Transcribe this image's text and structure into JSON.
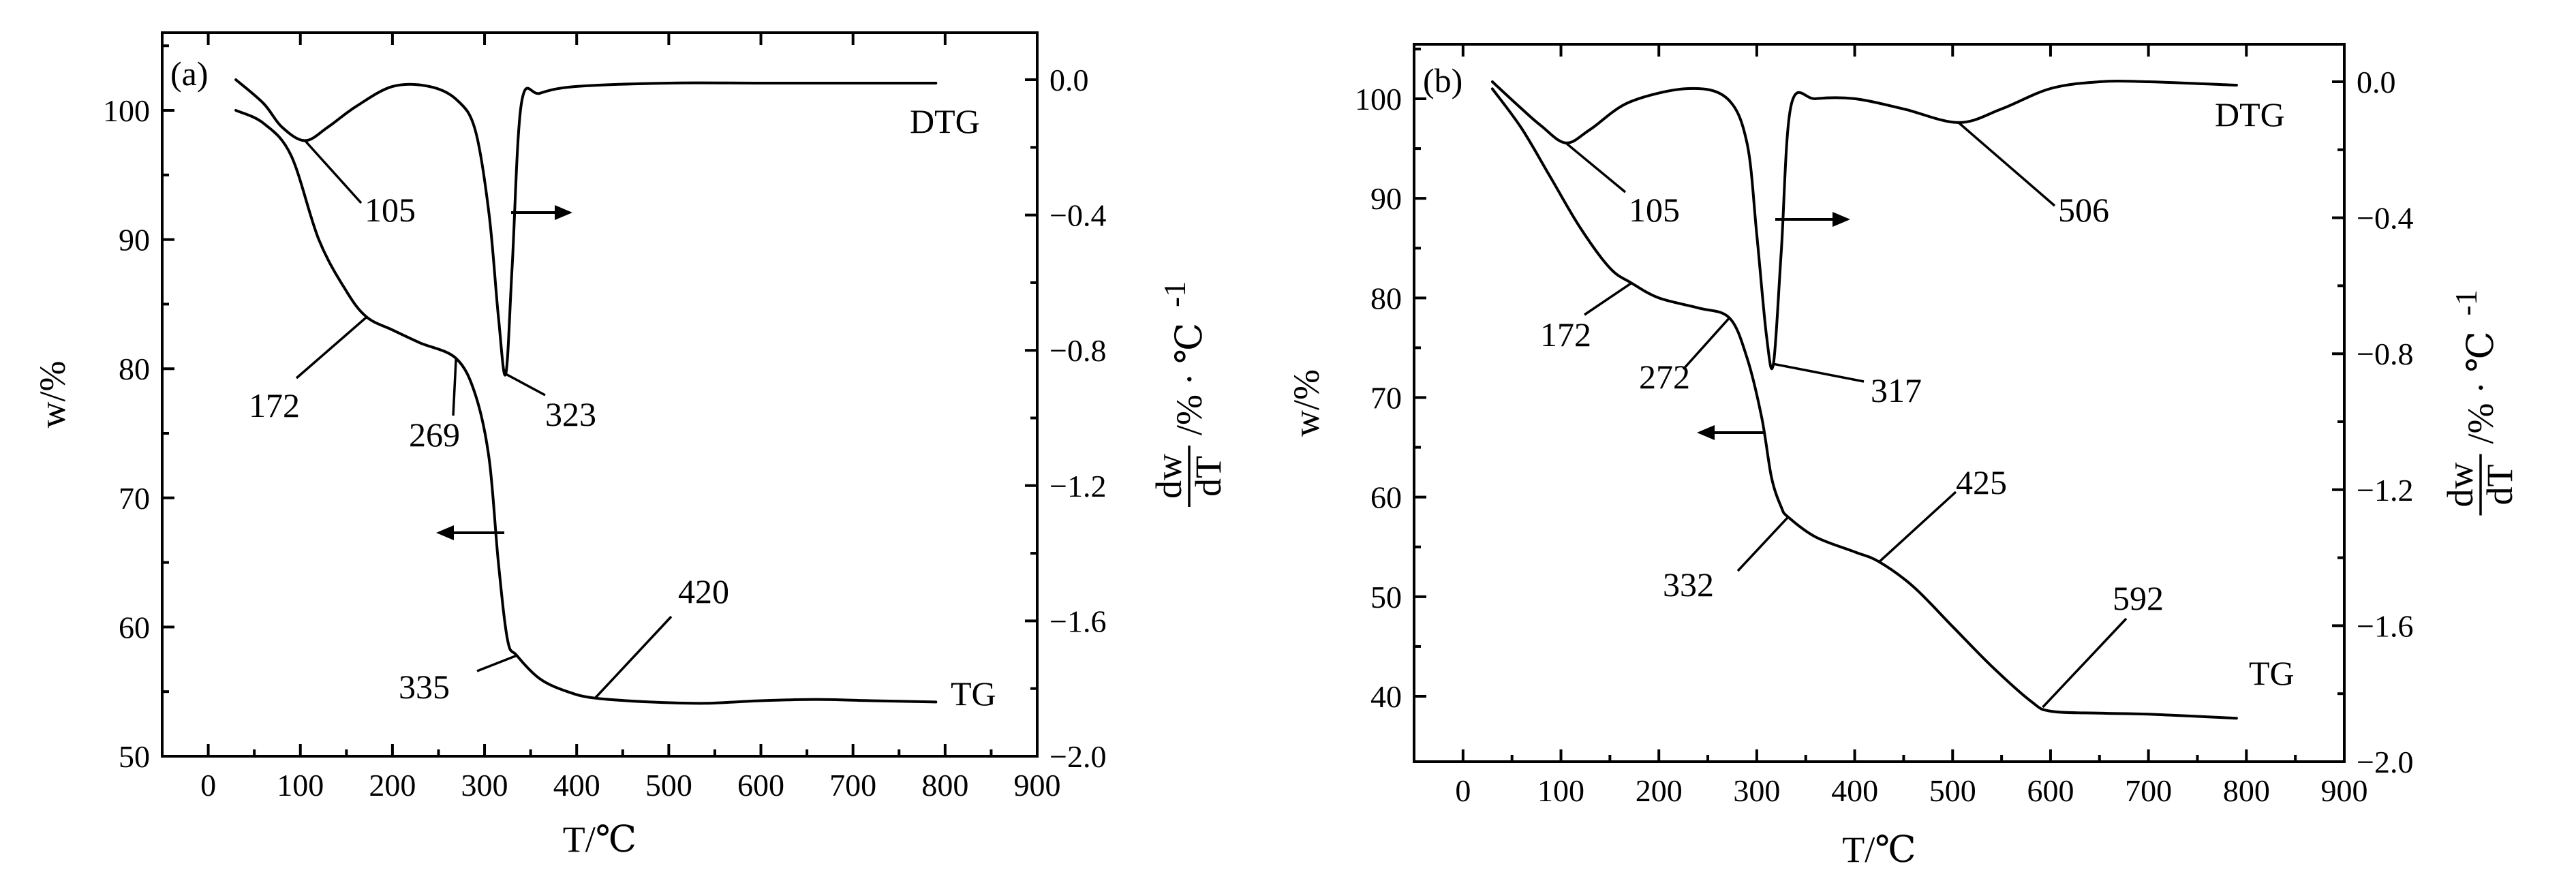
{
  "chart_data": [
    {
      "type": "line",
      "panel_label": "(a)",
      "xlabel": "T/℃",
      "ylabel_left": "w/%",
      "ylabel_right_num": "dw",
      "ylabel_right_den": "dT",
      "ylabel_right_unit": "/% · ℃",
      "ylabel_right_exp": "-1",
      "xlim": [
        -50,
        900
      ],
      "ylim_left": [
        50,
        105
      ],
      "ylim_right": [
        -2.0,
        0.15
      ],
      "x_ticks": [
        "0",
        "100",
        "200",
        "300",
        "400",
        "500",
        "600",
        "700",
        "800",
        "900"
      ],
      "y_left_ticks": [
        "50",
        "60",
        "70",
        "80",
        "90",
        "100"
      ],
      "y_right_ticks": [
        "0.0",
        "−0.4",
        "−0.8",
        "−1.2",
        "−1.6",
        "−2.0"
      ],
      "series": [
        {
          "name": "TG",
          "axis": "left",
          "x": [
            30,
            60,
            90,
            120,
            150,
            172,
            200,
            230,
            269,
            290,
            305,
            315,
            325,
            335,
            360,
            390,
            420,
            480,
            540,
            600,
            660,
            720,
            790
          ],
          "y": [
            100.0,
            99.0,
            96.5,
            90.0,
            86.0,
            84.0,
            83.0,
            82.0,
            80.8,
            78.0,
            73.0,
            65.0,
            59.0,
            57.8,
            56.0,
            55.0,
            54.5,
            54.2,
            54.1,
            54.3,
            54.4,
            54.3,
            54.2
          ]
        },
        {
          "name": "DTG",
          "axis": "right",
          "x": [
            30,
            60,
            80,
            105,
            130,
            160,
            200,
            240,
            270,
            290,
            305,
            315,
            323,
            330,
            340,
            360,
            400,
            500,
            600,
            700,
            790
          ],
          "y": [
            0.0,
            -0.07,
            -0.14,
            -0.18,
            -0.14,
            -0.08,
            -0.02,
            -0.02,
            -0.06,
            -0.15,
            -0.4,
            -0.7,
            -0.87,
            -0.55,
            -0.07,
            -0.04,
            -0.02,
            -0.01,
            -0.01,
            -0.01,
            -0.01
          ]
        }
      ],
      "annotations": [
        {
          "text": "105",
          "x": 105
        },
        {
          "text": "172",
          "x": 172
        },
        {
          "text": "269",
          "x": 269
        },
        {
          "text": "323",
          "x": 323
        },
        {
          "text": "335",
          "x": 335
        },
        {
          "text": "420",
          "x": 420
        },
        {
          "text": "DTG"
        },
        {
          "text": "TG"
        }
      ]
    },
    {
      "type": "line",
      "panel_label": "(b)",
      "xlabel": "T/℃",
      "ylabel_left": "w/%",
      "ylabel_right_num": "dw",
      "ylabel_right_den": "dT",
      "ylabel_right_unit": "/% · ℃",
      "ylabel_right_exp": "-1",
      "xlim": [
        -50,
        900
      ],
      "ylim_left": [
        33,
        103
      ],
      "ylim_right": [
        -2.0,
        0.1
      ],
      "x_ticks": [
        "0",
        "100",
        "200",
        "300",
        "400",
        "500",
        "600",
        "700",
        "800",
        "900"
      ],
      "y_left_ticks": [
        "40",
        "50",
        "60",
        "70",
        "80",
        "90",
        "100"
      ],
      "y_right_ticks": [
        "0.0",
        "−0.4",
        "−0.8",
        "−1.2",
        "−1.6",
        "−2.0"
      ],
      "series": [
        {
          "name": "TG",
          "axis": "left",
          "x": [
            30,
            60,
            90,
            120,
            150,
            172,
            200,
            240,
            272,
            290,
            305,
            315,
            325,
            332,
            360,
            400,
            425,
            460,
            500,
            540,
            580,
            600,
            650,
            700,
            790
          ],
          "y": [
            101.0,
            97.0,
            92.0,
            87.0,
            83.0,
            81.5,
            80.0,
            79.0,
            78.0,
            74.0,
            68.0,
            62.0,
            59.0,
            58.0,
            56.0,
            54.5,
            53.5,
            51.0,
            47.0,
            43.0,
            39.5,
            38.5,
            38.3,
            38.2,
            37.8
          ]
        },
        {
          "name": "DTG",
          "axis": "right",
          "x": [
            30,
            60,
            80,
            105,
            130,
            170,
            230,
            270,
            290,
            300,
            310,
            317,
            325,
            335,
            360,
            400,
            450,
            506,
            550,
            600,
            650,
            700,
            790
          ],
          "y": [
            0.0,
            -0.08,
            -0.13,
            -0.18,
            -0.14,
            -0.06,
            -0.02,
            -0.05,
            -0.18,
            -0.45,
            -0.75,
            -0.83,
            -0.5,
            -0.07,
            -0.05,
            -0.05,
            -0.08,
            -0.12,
            -0.08,
            -0.02,
            0.0,
            0.0,
            -0.01
          ]
        }
      ],
      "annotations": [
        {
          "text": "105",
          "x": 105
        },
        {
          "text": "172",
          "x": 172
        },
        {
          "text": "272",
          "x": 272
        },
        {
          "text": "317",
          "x": 317
        },
        {
          "text": "332",
          "x": 332
        },
        {
          "text": "425",
          "x": 425
        },
        {
          "text": "506",
          "x": 506
        },
        {
          "text": "592",
          "x": 592
        },
        {
          "text": "DTG"
        },
        {
          "text": "TG"
        }
      ]
    }
  ]
}
